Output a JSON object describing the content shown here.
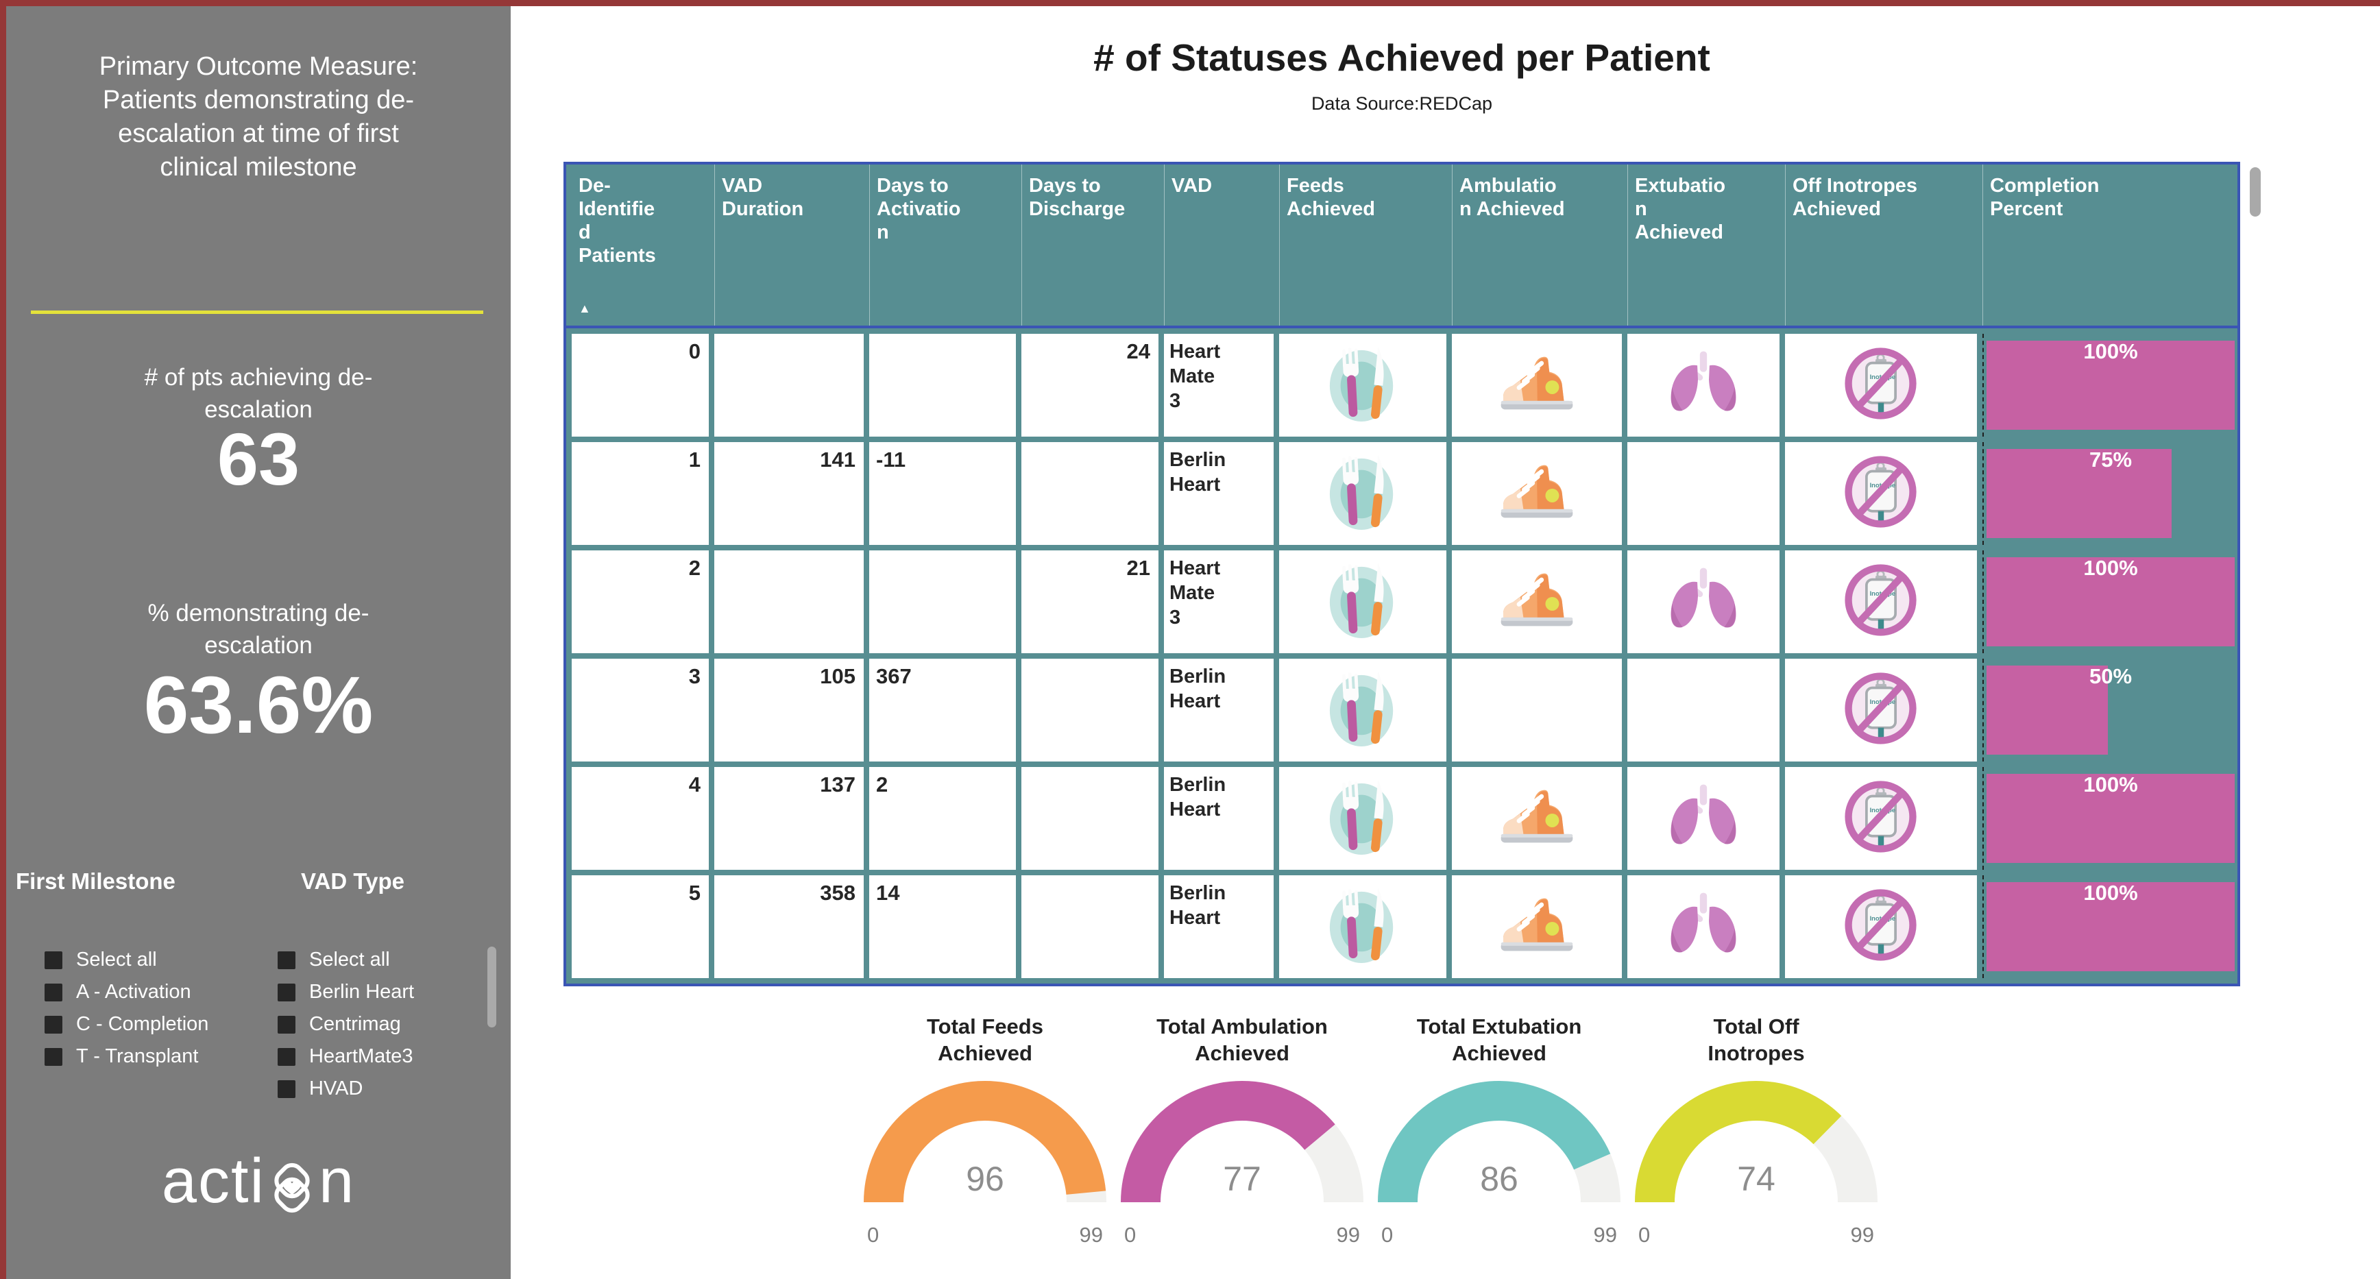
{
  "sidebar": {
    "title_lines": [
      "Primary Outcome Measure:",
      "Patients demonstrating de-",
      "escalation at time of first",
      "clinical milestone"
    ],
    "metric1": {
      "label": "# of pts achieving de-escalation",
      "value": "63"
    },
    "metric2": {
      "label": "% demonstrating de-escalation",
      "value": "63.6%"
    },
    "filters": [
      {
        "title": "First Milestone",
        "options": [
          "Select all",
          "A - Activation",
          "C - Completion",
          "T - Transplant"
        ]
      },
      {
        "title": "VAD Type",
        "options": [
          "Select all",
          "Berlin Heart",
          "Centrimag",
          "HeartMate3",
          "HVAD"
        ]
      }
    ],
    "logo": {
      "prefix": "acti",
      "suffix": "n"
    }
  },
  "main": {
    "title": "# of Statuses Achieved per Patient",
    "subtitle": "Data Source:REDCap",
    "table": {
      "sort_icon": "▲",
      "header_lines": [
        [
          "De-",
          "Identifie",
          "d",
          "Patients"
        ],
        [
          "VAD",
          "Duration"
        ],
        [
          "Days to",
          "Activatio",
          "n"
        ],
        [
          "Days to",
          "Discharge"
        ],
        [
          "VAD"
        ],
        [
          "Feeds",
          "Achieved"
        ],
        [
          "Ambulatio",
          "n Achieved"
        ],
        [
          "Extubatio",
          "n",
          "Achieved"
        ],
        [
          "Off Inotropes",
          "Achieved"
        ],
        [
          "Completion",
          "Percent"
        ]
      ],
      "rows": [
        {
          "patient": "0",
          "vad_duration": "",
          "days_to_activation": "",
          "days_to_discharge": "24",
          "vad_lines": [
            "Heart",
            "Mate",
            "3"
          ],
          "feeds": true,
          "ambulation": true,
          "extubation": true,
          "off_inotropes": true,
          "completion_percent": 100,
          "completion_label": "100%"
        },
        {
          "patient": "1",
          "vad_duration": "141",
          "days_to_activation": "-11",
          "days_to_discharge": "",
          "vad_lines": [
            "Berlin",
            "Heart"
          ],
          "feeds": true,
          "ambulation": true,
          "extubation": false,
          "off_inotropes": true,
          "completion_percent": 75,
          "completion_label": "75%"
        },
        {
          "patient": "2",
          "vad_duration": "",
          "days_to_activation": "",
          "days_to_discharge": "21",
          "vad_lines": [
            "Heart",
            "Mate",
            "3"
          ],
          "feeds": true,
          "ambulation": true,
          "extubation": true,
          "off_inotropes": true,
          "completion_percent": 100,
          "completion_label": "100%"
        },
        {
          "patient": "3",
          "vad_duration": "105",
          "days_to_activation": "367",
          "days_to_discharge": "",
          "vad_lines": [
            "Berlin",
            "Heart"
          ],
          "feeds": true,
          "ambulation": false,
          "extubation": false,
          "off_inotropes": true,
          "completion_percent": 50,
          "completion_label": "50%"
        },
        {
          "patient": "4",
          "vad_duration": "137",
          "days_to_activation": "2",
          "days_to_discharge": "",
          "vad_lines": [
            "Berlin",
            "Heart"
          ],
          "feeds": true,
          "ambulation": true,
          "extubation": true,
          "off_inotropes": true,
          "completion_percent": 100,
          "completion_label": "100%"
        },
        {
          "patient": "5",
          "vad_duration": "358",
          "days_to_activation": "14",
          "days_to_discharge": "",
          "vad_lines": [
            "Berlin",
            "Heart"
          ],
          "feeds": true,
          "ambulation": true,
          "extubation": true,
          "off_inotropes": true,
          "completion_percent": 100,
          "completion_label": "100%"
        }
      ]
    },
    "chart_data": [
      {
        "type": "gauge",
        "title": "Total Feeds Achieved",
        "value": 96,
        "min": 0,
        "max": 99
      },
      {
        "type": "gauge",
        "title": "Total Ambulation Achieved",
        "value": 77,
        "min": 0,
        "max": 99
      },
      {
        "type": "gauge",
        "title": "Total Extubation Achieved",
        "value": 86,
        "min": 0,
        "max": 99
      },
      {
        "type": "gauge",
        "title": "Total Off Inotropes",
        "value": 74,
        "min": 0,
        "max": 99
      }
    ],
    "gauges": [
      {
        "title_lines": [
          "Total Feeds",
          "Achieved"
        ],
        "value": 96,
        "min": "0",
        "max": "99",
        "color": "#F59B4C"
      },
      {
        "title_lines": [
          "Total Ambulation",
          "Achieved"
        ],
        "value": 77,
        "min": "0",
        "max": "99",
        "color": "#C45BA4"
      },
      {
        "title_lines": [
          "Total Extubation",
          "Achieved"
        ],
        "value": 86,
        "min": "0",
        "max": "99",
        "color": "#6FC6C2"
      },
      {
        "title_lines": [
          "Total Off",
          "Inotropes"
        ],
        "value": 74,
        "min": "0",
        "max": "99",
        "color": "#D9DA33"
      }
    ],
    "colors": {
      "header_teal": "#578E92",
      "selection_blue": "#3A55B4",
      "bar_magenta": "#C661A3",
      "track_gray": "#F1F1EF"
    }
  }
}
